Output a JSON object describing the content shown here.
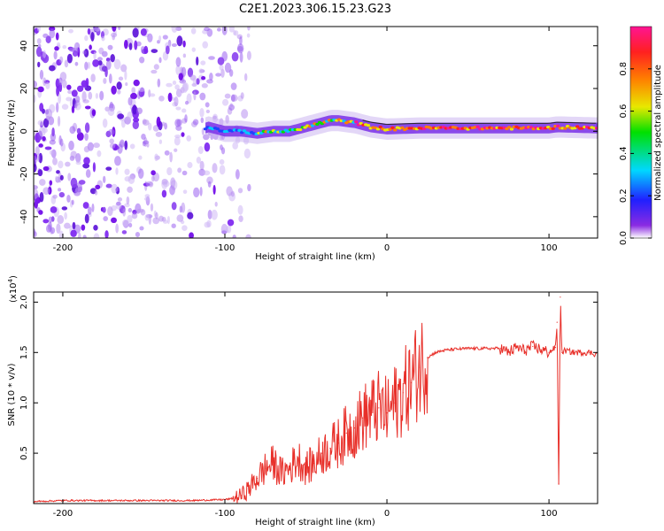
{
  "title": "C2E1.2023.306.15.23.G23",
  "chart_data": [
    {
      "type": "heatmap",
      "xlabel": "Height of straight line (km)",
      "ylabel": "Frequency (Hz)",
      "xlim": [
        -218,
        130
      ],
      "ylim": [
        -50,
        49
      ],
      "xticks": [
        -200,
        -100,
        0,
        100
      ],
      "xtick_labels": [
        "-200",
        "-100",
        "0",
        "100"
      ],
      "yticks": [
        40,
        20,
        0,
        -20,
        -40
      ],
      "ytick_labels": [
        "40",
        "20",
        "0",
        "-20",
        "-40"
      ],
      "colorbar": {
        "label": "Normalized spectral amplitude",
        "range": [
          0,
          1
        ],
        "ticks": [
          0.0,
          0.2,
          0.4,
          0.6,
          0.8
        ],
        "tick_labels": [
          "0.0",
          "0.2",
          "0.4",
          "0.6",
          "0.8"
        ],
        "colors": [
          "#ffffff",
          "#8a2be2",
          "#2020ff",
          "#00d8ff",
          "#00e000",
          "#e8e800",
          "#ff8000",
          "#ff2020",
          "#ff1493"
        ]
      },
      "ridge_points": [
        {
          "x": -110,
          "y": 2
        },
        {
          "x": -100,
          "y": 0
        },
        {
          "x": -90,
          "y": 0
        },
        {
          "x": -80,
          "y": -1
        },
        {
          "x": -70,
          "y": 0
        },
        {
          "x": -60,
          "y": 0
        },
        {
          "x": -50,
          "y": 2
        },
        {
          "x": -40,
          "y": 4
        },
        {
          "x": -35,
          "y": 5
        },
        {
          "x": -30,
          "y": 5
        },
        {
          "x": -20,
          "y": 4
        },
        {
          "x": -10,
          "y": 2
        },
        {
          "x": 0,
          "y": 1
        },
        {
          "x": 20,
          "y": 1.5
        },
        {
          "x": 40,
          "y": 1.5
        },
        {
          "x": 60,
          "y": 1.5
        },
        {
          "x": 80,
          "y": 1.5
        },
        {
          "x": 100,
          "y": 1.5
        },
        {
          "x": 105,
          "y": 2
        },
        {
          "x": 130,
          "y": 1.5
        }
      ],
      "grid": false
    },
    {
      "type": "line",
      "xlabel": "Height of straight line (km)",
      "ylabel": "SNR (10 * v/v)",
      "y_multiplier": "(x10",
      "y_multiplier_exp": "4",
      "xlim": [
        -218,
        130
      ],
      "ylim": [
        0,
        2.1
      ],
      "xticks": [
        -200,
        -100,
        0,
        100
      ],
      "xtick_labels": [
        "-200",
        "-100",
        "0",
        "100"
      ],
      "yticks": [
        0.5,
        1.0,
        1.5,
        2.0
      ],
      "ytick_labels": [
        "0.5",
        "1.0",
        "1.5",
        "2.0"
      ],
      "line_color": "#e8302a",
      "series": [
        {
          "x": [
            -218,
            -200,
            -180,
            -160,
            -140,
            -120,
            -100,
            -95,
            -90,
            -85,
            -80,
            -75,
            -70,
            -65,
            -60,
            -55,
            -50,
            -45,
            -40,
            -35,
            -30,
            -25,
            -20,
            -15,
            -10,
            -5,
            0,
            5,
            10,
            15,
            20,
            25,
            30,
            35,
            40,
            50,
            60,
            70,
            75,
            80,
            85,
            90,
            95,
            100,
            104,
            105,
            106,
            107,
            108,
            110,
            115,
            120,
            125,
            130
          ],
          "y": [
            0.02,
            0.03,
            0.03,
            0.03,
            0.03,
            0.03,
            0.04,
            0.05,
            0.08,
            0.15,
            0.25,
            0.35,
            0.4,
            0.3,
            0.35,
            0.45,
            0.35,
            0.4,
            0.5,
            0.55,
            0.6,
            0.7,
            0.75,
            0.85,
            0.9,
            0.95,
            0.9,
            1.0,
            1.1,
            1.2,
            1.35,
            1.45,
            1.5,
            1.52,
            1.53,
            1.54,
            1.54,
            1.54,
            1.5,
            1.55,
            1.52,
            1.56,
            1.53,
            1.5,
            1.55,
            1.8,
            0.2,
            2.05,
            1.5,
            1.52,
            1.5,
            1.5,
            1.5,
            1.48
          ]
        }
      ],
      "grid": false
    }
  ]
}
